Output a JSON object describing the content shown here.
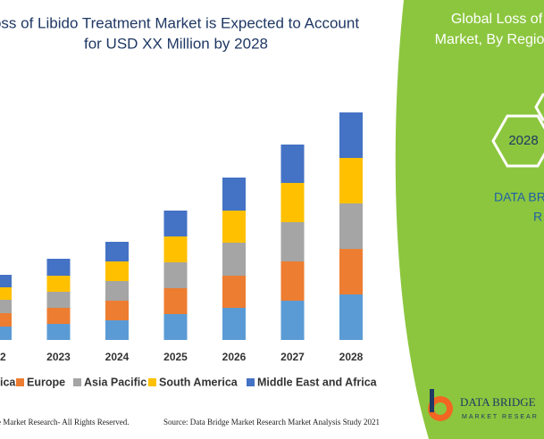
{
  "chart_data": {
    "type": "stacked_bar",
    "title_lines": [
      "oss of Libido Treatment Market is Expected to Account",
      "for USD XX Million by 2028"
    ],
    "categories": [
      "22",
      "2023",
      "2024",
      "2025",
      "2026",
      "2027",
      "2028"
    ],
    "series": [
      {
        "name": "ica",
        "color": "#5b9bd5",
        "values": [
          15,
          18,
          22,
          29,
          36,
          44,
          51
        ]
      },
      {
        "name": "Europe",
        "color": "#ed7d31",
        "values": [
          15,
          18,
          22,
          29,
          36,
          44,
          51
        ]
      },
      {
        "name": "Asia Pacific",
        "color": "#a5a5a5",
        "values": [
          15,
          18,
          22,
          29,
          37,
          44,
          51
        ]
      },
      {
        "name": "South America",
        "color": "#ffc000",
        "values": [
          14,
          18,
          22,
          29,
          36,
          44,
          51
        ]
      },
      {
        "name": "Middle East and Africa",
        "color": "#4472c4",
        "values": [
          14,
          19,
          22,
          29,
          37,
          43,
          51
        ]
      }
    ],
    "ylim": [
      0,
      255
    ]
  },
  "footer": {
    "copyright": "dge Market Research- All Rights Reserved.",
    "source": "Source: Data Bridge Market Research Market Analysis Study 2021"
  },
  "panel": {
    "title_lines": [
      "Global Loss of",
      "Market, By Regio"
    ],
    "hex_year": "2028",
    "brand_lines": [
      "DATA BR",
      "R"
    ],
    "logo_name": "DATA BRIDGE",
    "logo_sub": "MARKET RESEAR"
  }
}
